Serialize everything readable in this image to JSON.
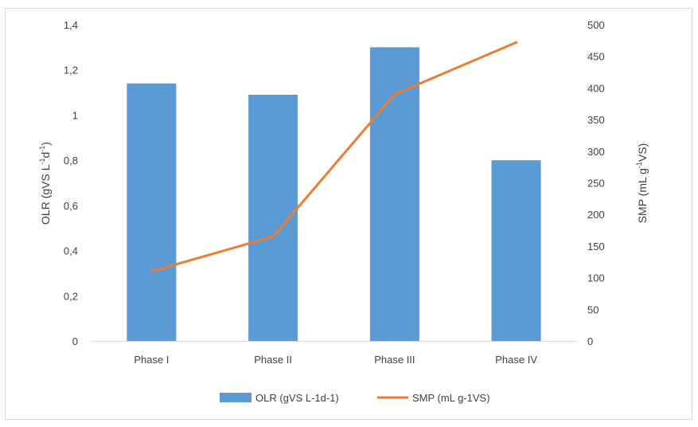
{
  "chart_data": {
    "type": "bar",
    "title": "",
    "categories": [
      "Phase I",
      "Phase II",
      "Phase III",
      "Phase IV"
    ],
    "series": [
      {
        "name": "OLR (gVS L-1d-1)",
        "type": "bar",
        "axis": "left",
        "color": "#5B9BD5",
        "values": [
          1.14,
          1.09,
          1.3,
          0.8
        ]
      },
      {
        "name": "SMP (mL g-1VS)",
        "type": "line",
        "axis": "right",
        "color": "#ED7D31",
        "values": [
          110,
          165,
          390,
          472
        ]
      }
    ],
    "y_left": {
      "label_base": "OLR (gVS L",
      "label_sup1": "-1",
      "label_mid": "d",
      "label_sup2": "-1",
      "label_end": ")",
      "ylim": [
        0,
        1.4
      ],
      "ticks": [
        "0",
        "0,2",
        "0,4",
        "0,6",
        "0,8",
        "1",
        "1,2",
        "1,4"
      ]
    },
    "y_right": {
      "label_base": "SMP (mL g",
      "label_sup": "-1",
      "label_end": "VS)",
      "ylim": [
        0,
        500
      ],
      "ticks": [
        "0",
        "50",
        "100",
        "150",
        "200",
        "250",
        "300",
        "350",
        "400",
        "450",
        "500"
      ]
    },
    "grid": false,
    "legend": "bottom"
  }
}
